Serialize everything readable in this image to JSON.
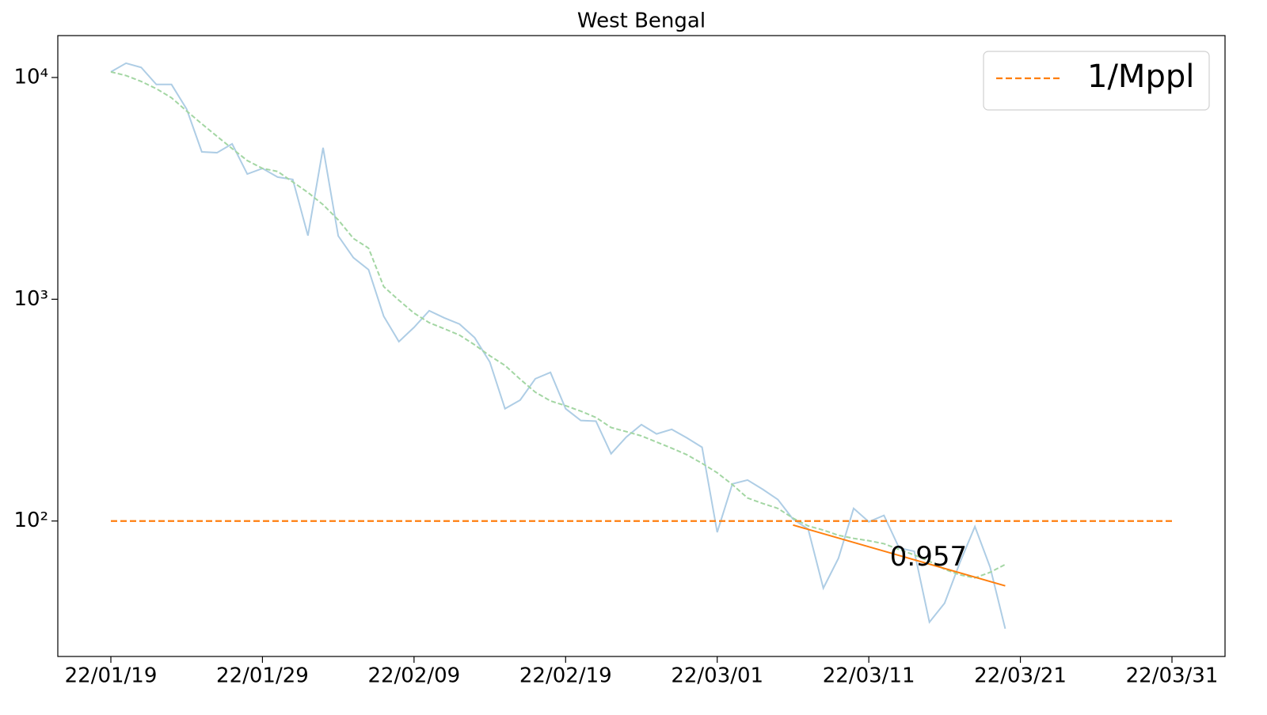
{
  "chart_data": {
    "type": "line",
    "title": "West Bengal",
    "x": [
      0,
      1,
      2,
      3,
      4,
      5,
      6,
      7,
      8,
      9,
      10,
      11,
      12,
      13,
      14,
      15,
      16,
      17,
      18,
      19,
      20,
      21,
      22,
      23,
      24,
      25,
      26,
      27,
      28,
      29,
      30,
      31,
      32,
      33,
      34,
      35,
      36,
      37,
      38,
      39,
      40,
      41,
      42,
      43,
      44,
      45,
      46,
      47,
      48,
      49,
      50,
      51,
      52,
      53,
      54,
      55,
      56,
      57,
      58,
      59
    ],
    "log_y": true,
    "xlim": [
      -3.5,
      73.5
    ],
    "ylim": [
      24.5,
      15450
    ],
    "xticks": [
      {
        "value": 0,
        "label": "22/01/19"
      },
      {
        "value": 10,
        "label": "22/01/29"
      },
      {
        "value": 20,
        "label": "22/02/09"
      },
      {
        "value": 30,
        "label": "22/02/19"
      },
      {
        "value": 40,
        "label": "22/03/01"
      },
      {
        "value": 50,
        "label": "22/03/11"
      },
      {
        "value": 60,
        "label": "22/03/21"
      },
      {
        "value": 70,
        "label": "22/03/31"
      }
    ],
    "yticks": [
      {
        "value": 100,
        "label": "10²"
      },
      {
        "value": 1000,
        "label": "10³"
      },
      {
        "value": 10000,
        "label": "10⁴"
      }
    ],
    "legend_position": "upper right",
    "series": [
      {
        "color": "#aecde5",
        "dashed": false,
        "values": [
          10600,
          11600,
          11100,
          9300,
          9300,
          7200,
          4620,
          4580,
          5020,
          3670,
          3890,
          3555,
          3470,
          1936,
          4820,
          1930,
          1540,
          1360,
          838,
          644,
          747,
          888,
          824,
          773,
          671,
          521,
          321,
          351,
          438,
          468,
          321,
          284,
          282,
          201,
          239,
          272,
          247,
          259,
          237,
          215,
          89,
          147,
          153,
          139,
          125,
          102,
          92,
          49.8,
          68,
          114,
          99.2,
          106,
          75.6,
          73,
          35,
          42.6,
          64.7,
          94.4,
          62,
          32.7
        ]
      },
      {
        "color": "#a3d6a3",
        "dashed": true,
        "values": [
          10600,
          10200,
          9600,
          8900,
          8100,
          7060,
          6180,
          5430,
          4780,
          4220,
          3890,
          3770,
          3380,
          3030,
          2670,
          2280,
          1880,
          1700,
          1140,
          990,
          866,
          784,
          736,
          689,
          623,
          556,
          503,
          436,
          381,
          348,
          331,
          313,
          293,
          264,
          253,
          242,
          227,
          213,
          199,
          182,
          165,
          146,
          127,
          120,
          114,
          103,
          95,
          91,
          86.2,
          83.5,
          81.5,
          79,
          74.4,
          70.3,
          65.8,
          60.6,
          57.2,
          55.4,
          58.7,
          63.7
        ]
      },
      {
        "name": "1/Mppl",
        "color": "#ff7f0e",
        "dashed": true,
        "x": [
          0,
          70
        ],
        "values": [
          100,
          100
        ]
      },
      {
        "color": "#ff7f0e",
        "dashed": false,
        "x": [
          45,
          59
        ],
        "values": [
          95.9,
          51.0
        ]
      }
    ],
    "annotations": [
      "0.957"
    ]
  }
}
